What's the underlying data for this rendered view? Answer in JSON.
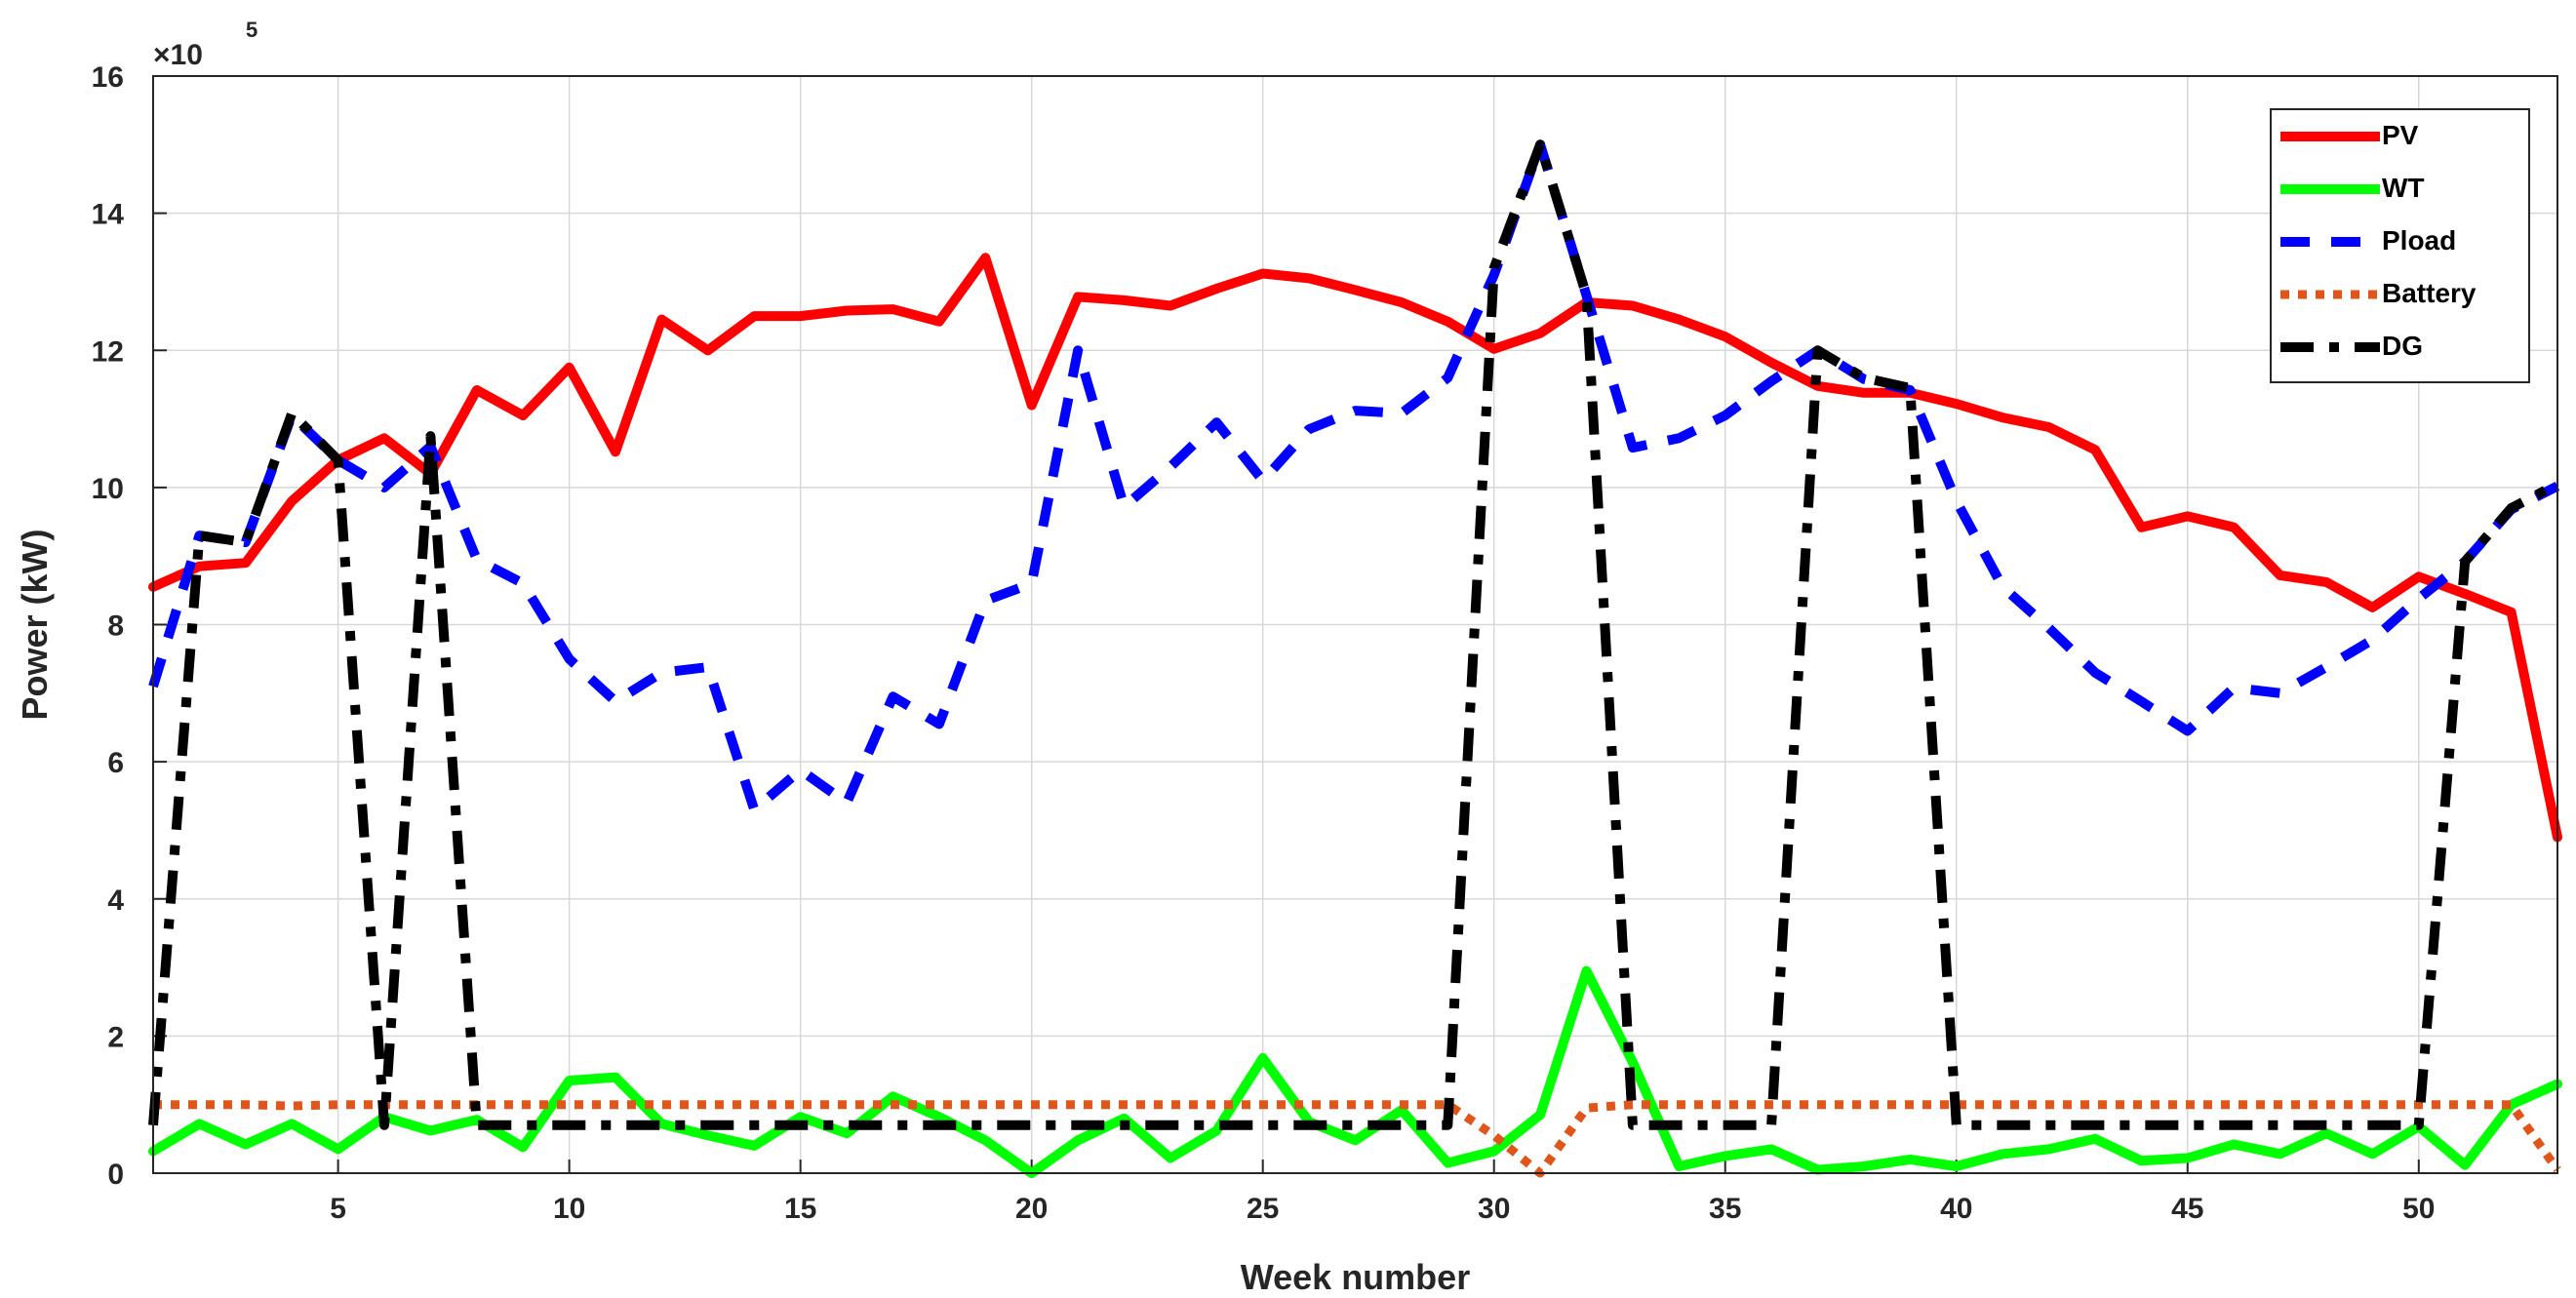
{
  "chart_data": {
    "type": "line",
    "title": "",
    "xlabel": "Week number",
    "ylabel": "Power (kW)",
    "y_exponent_label": "×10",
    "y_exponent": "5",
    "xlim": [
      1,
      53
    ],
    "ylim": [
      0,
      16
    ],
    "xticks": [
      5,
      10,
      15,
      20,
      25,
      30,
      35,
      40,
      45,
      50
    ],
    "yticks": [
      0,
      2,
      4,
      6,
      8,
      10,
      12,
      14,
      16
    ],
    "grid": true,
    "legend_position": "top-right",
    "x": [
      1,
      2,
      3,
      4,
      5,
      6,
      7,
      8,
      9,
      10,
      11,
      12,
      13,
      14,
      15,
      16,
      17,
      18,
      19,
      20,
      21,
      22,
      23,
      24,
      25,
      26,
      27,
      28,
      29,
      30,
      31,
      32,
      33,
      34,
      35,
      36,
      37,
      38,
      39,
      40,
      41,
      42,
      43,
      44,
      45,
      46,
      47,
      48,
      49,
      50,
      51,
      52,
      53
    ],
    "series": [
      {
        "name": "PV",
        "color": "#ff0000",
        "style": "solid",
        "values": [
          8.55,
          8.85,
          8.9,
          9.8,
          10.4,
          10.72,
          10.2,
          11.42,
          11.05,
          11.75,
          10.52,
          12.45,
          12.0,
          12.5,
          12.5,
          12.58,
          12.6,
          12.42,
          13.35,
          11.2,
          12.78,
          12.73,
          12.65,
          12.9,
          13.12,
          13.05,
          12.88,
          12.7,
          12.42,
          12.02,
          12.25,
          12.7,
          12.65,
          12.45,
          12.2,
          11.82,
          11.48,
          11.38,
          11.38,
          11.22,
          11.02,
          10.88,
          10.55,
          9.42,
          9.58,
          9.42,
          8.72,
          8.62,
          8.25,
          8.7,
          8.45,
          8.18,
          4.9
        ]
      },
      {
        "name": "WT",
        "color": "#00ff00",
        "style": "solid",
        "values": [
          0.32,
          0.72,
          0.42,
          0.72,
          0.35,
          0.82,
          0.62,
          0.78,
          0.38,
          1.35,
          1.4,
          0.72,
          0.55,
          0.4,
          0.82,
          0.58,
          1.12,
          0.82,
          0.48,
          0.0,
          0.48,
          0.8,
          0.22,
          0.62,
          1.68,
          0.75,
          0.48,
          0.92,
          0.15,
          0.32,
          0.85,
          2.95,
          1.62,
          0.1,
          0.25,
          0.35,
          0.05,
          0.1,
          0.2,
          0.1,
          0.28,
          0.35,
          0.5,
          0.18,
          0.22,
          0.42,
          0.28,
          0.58,
          0.28,
          0.68,
          0.12,
          1.0,
          1.3
        ]
      },
      {
        "name": "Pload",
        "color": "#0000ff",
        "style": "dashed",
        "values": [
          7.1,
          9.3,
          9.2,
          11.05,
          10.4,
          10.0,
          10.6,
          8.95,
          8.6,
          7.5,
          6.88,
          7.3,
          7.38,
          5.3,
          5.88,
          5.4,
          6.95,
          6.55,
          8.35,
          8.6,
          12.0,
          9.72,
          10.3,
          10.95,
          10.1,
          10.85,
          11.12,
          11.08,
          11.6,
          13.1,
          15.0,
          12.8,
          10.58,
          10.72,
          11.05,
          11.55,
          12.0,
          11.58,
          11.42,
          9.8,
          8.55,
          7.95,
          7.3,
          6.88,
          6.45,
          7.08,
          7.0,
          7.38,
          7.78,
          8.38,
          8.92,
          9.68,
          10.02
        ]
      },
      {
        "name": "Battery",
        "color": "#e0561a",
        "style": "dotted",
        "values": [
          1.0,
          1.0,
          1.0,
          0.98,
          1.0,
          1.0,
          1.0,
          1.0,
          1.0,
          1.0,
          1.0,
          1.0,
          1.0,
          1.0,
          1.0,
          1.0,
          1.0,
          1.0,
          1.0,
          1.0,
          1.0,
          1.0,
          1.0,
          1.0,
          1.0,
          1.0,
          1.0,
          1.0,
          1.0,
          0.55,
          0.0,
          0.95,
          1.0,
          1.0,
          1.0,
          1.0,
          1.0,
          1.0,
          1.0,
          1.0,
          1.0,
          1.0,
          1.0,
          1.0,
          1.0,
          1.0,
          1.0,
          1.0,
          1.0,
          1.0,
          1.0,
          1.0,
          0.05
        ]
      },
      {
        "name": "DG",
        "color": "#000000",
        "style": "dashdot",
        "values": [
          0.7,
          9.3,
          9.2,
          11.08,
          10.4,
          0.7,
          10.75,
          0.7,
          0.7,
          0.7,
          0.7,
          0.7,
          0.7,
          0.7,
          0.7,
          0.7,
          0.7,
          0.7,
          0.7,
          0.7,
          0.7,
          0.7,
          0.7,
          0.7,
          0.7,
          0.7,
          0.7,
          0.7,
          0.7,
          13.2,
          15.0,
          12.8,
          0.7,
          0.7,
          0.7,
          0.7,
          12.0,
          11.6,
          11.45,
          0.7,
          0.7,
          0.7,
          0.7,
          0.7,
          0.7,
          0.7,
          0.7,
          0.7,
          0.7,
          0.7,
          8.92,
          9.7,
          10.05
        ]
      }
    ]
  }
}
